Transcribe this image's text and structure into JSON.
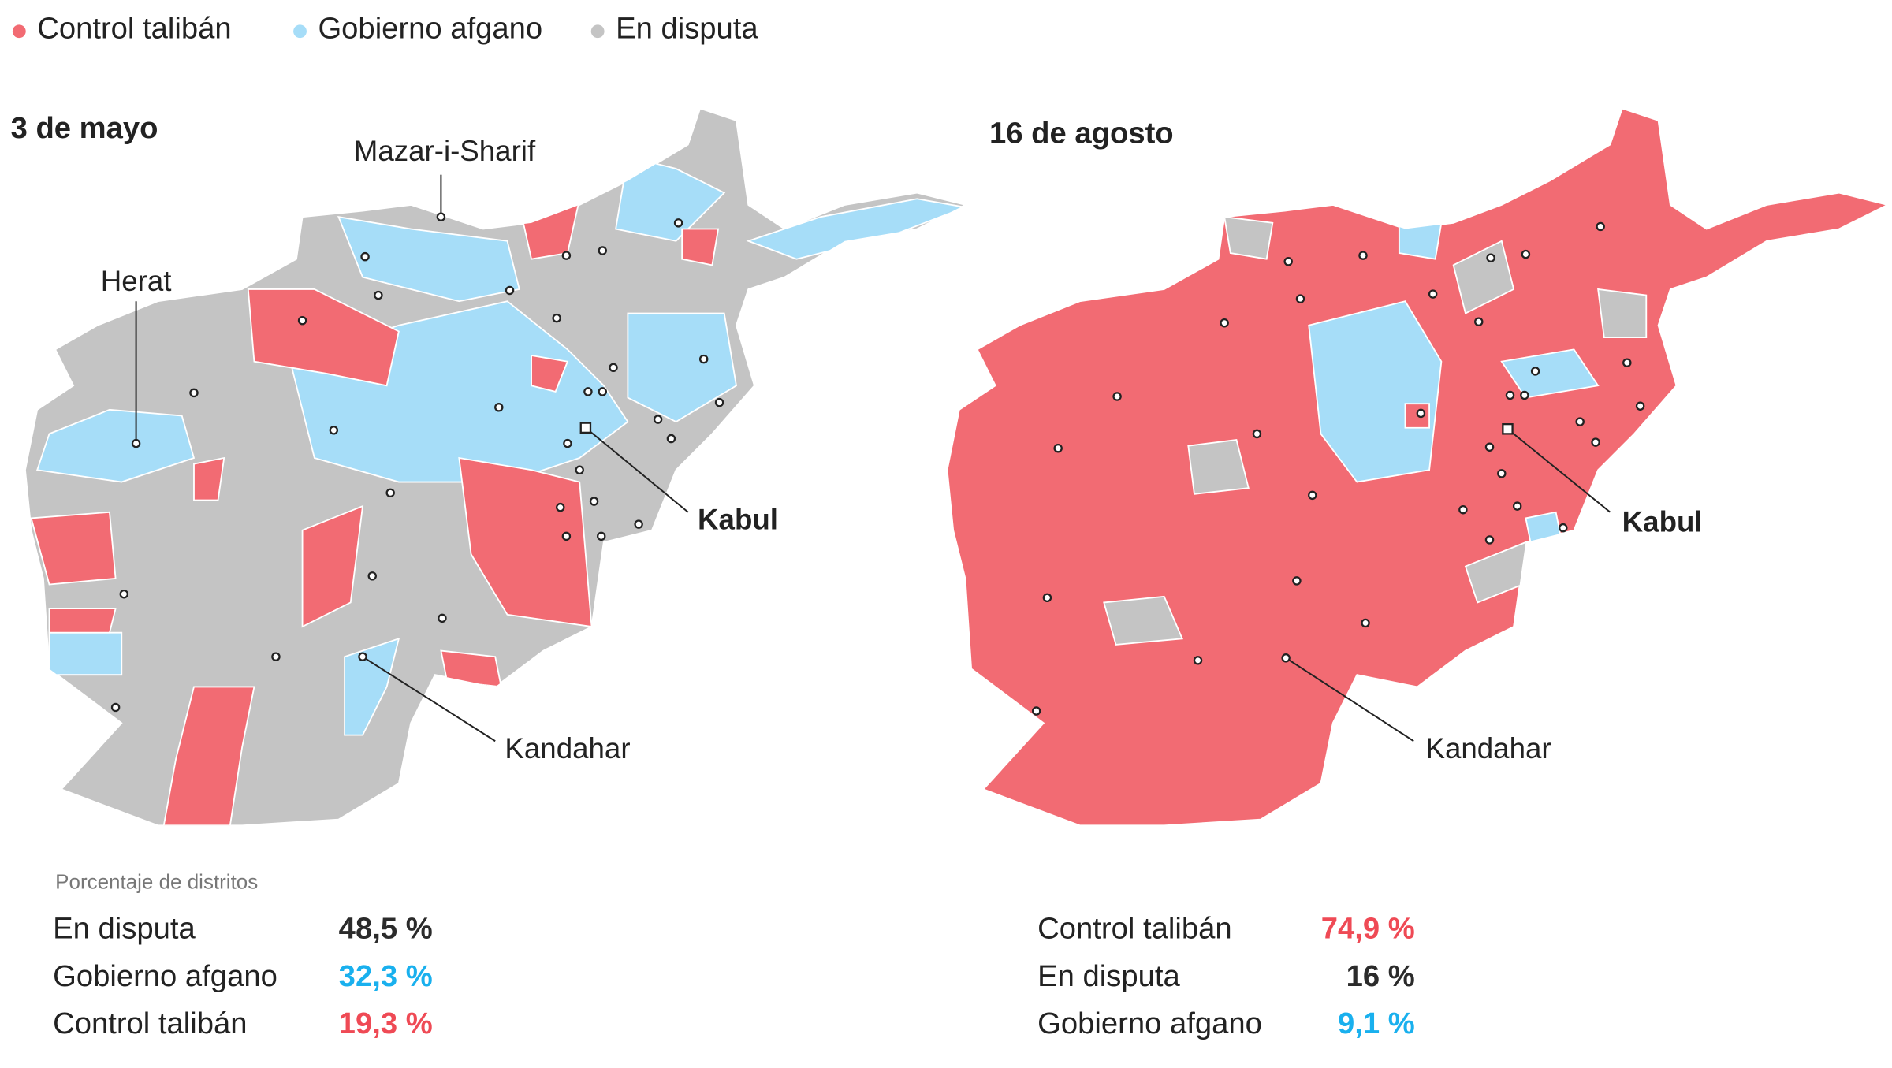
{
  "legend": [
    {
      "label": "Control talibán",
      "color": "#f26b73"
    },
    {
      "label": "Gobierno afgano",
      "color": "#a6ddf8"
    },
    {
      "label": "En disputa",
      "color": "#c4c4c4"
    }
  ],
  "maps": [
    {
      "date": "3 de mayo",
      "cities": [
        "Herat",
        "Mazar-i-Sharif",
        "Kabul",
        "Kandahar"
      ]
    },
    {
      "date": "16 de agosto",
      "cities": [
        "Kabul",
        "Kandahar"
      ]
    }
  ],
  "stats": {
    "caption": "Porcentaje de distritos",
    "tables": [
      {
        "rows": [
          {
            "label": "En disputa",
            "value": "48,5 %",
            "color": "#2b2b2b"
          },
          {
            "label": "Gobierno afgano",
            "value": "32,3 %",
            "color": "#19b0ee"
          },
          {
            "label": "Control talibán",
            "value": "19,3 %",
            "color": "#ef4a55"
          }
        ]
      },
      {
        "rows": [
          {
            "label": "Control talibán",
            "value": "74,9 %",
            "color": "#ef4a55"
          },
          {
            "label": "En disputa",
            "value": "16 %",
            "color": "#2b2b2b"
          },
          {
            "label": "Gobierno afgano",
            "value": "9,1 %",
            "color": "#19b0ee"
          }
        ]
      }
    ]
  }
}
